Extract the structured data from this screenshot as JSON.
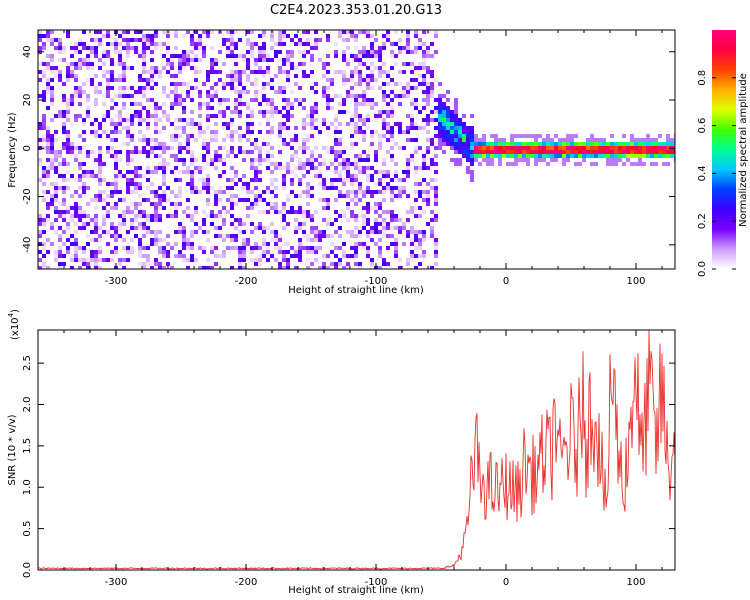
{
  "title": "C2E4.2023.353.01.20.G13",
  "chart_data": [
    {
      "type": "heatmap",
      "xlabel": "Height of straight line (km)",
      "ylabel": "Frequency (Hz)",
      "xlim": [
        -360,
        130
      ],
      "ylim": [
        -50,
        49
      ],
      "x_ticks": [
        -300,
        -200,
        -100,
        0,
        100
      ],
      "x_tick_labels": [
        "-300",
        "-200",
        "-100",
        "0",
        "100"
      ],
      "y_ticks": [
        -40,
        -20,
        0,
        20,
        40
      ],
      "y_tick_labels": [
        "-40",
        "-20",
        "0",
        "20",
        "40"
      ],
      "grid": false,
      "colorbar": {
        "label": "Normalized spectral amplitude",
        "range": [
          0,
          1
        ],
        "ticks": [
          0.0,
          0.2,
          0.4,
          0.6,
          0.8
        ],
        "tick_labels": [
          "0.0",
          "0.2",
          "0.4",
          "0.6",
          "0.8"
        ],
        "colormap": [
          "#ffffff",
          "#cc99ff",
          "#7a00ff",
          "#3a00ff",
          "#0040ff",
          "#00c8ff",
          "#00ff90",
          "#40ff00",
          "#e0ff00",
          "#ffb000",
          "#ff4000",
          "#ff0040",
          "#ff0080"
        ]
      },
      "regions": [
        {
          "description": "broadband noise",
          "x_range": [
            -360,
            -55
          ],
          "y_range": [
            -50,
            49
          ],
          "amplitude": [
            0.0,
            0.25
          ]
        },
        {
          "description": "transition",
          "x_range": [
            -55,
            -25
          ],
          "y_center_start": 15,
          "y_center_end": 0,
          "amplitude": [
            0.2,
            0.6
          ]
        },
        {
          "description": "carrier line",
          "x_range": [
            -25,
            130
          ],
          "y_center": 0,
          "amplitude": [
            0.8,
            1.0
          ]
        }
      ]
    },
    {
      "type": "line",
      "xlabel": "Height of straight line (km)",
      "ylabel": "SNR (10 * v/v)",
      "y_exponent_label": "(x10",
      "y_exponent_power": "4",
      "y_exponent_close": ")",
      "xlim": [
        -360,
        130
      ],
      "ylim": [
        0,
        2.9
      ],
      "x_ticks": [
        -300,
        -200,
        -100,
        0,
        100
      ],
      "x_tick_labels": [
        "-300",
        "-200",
        "-100",
        "0",
        "100"
      ],
      "y_ticks": [
        0.0,
        0.5,
        1.0,
        1.5,
        2.0,
        2.5
      ],
      "y_tick_labels": [
        "0.0",
        "0.5",
        "1.0",
        "1.5",
        "2.0",
        "2.5"
      ],
      "grid": false,
      "line_color": "#e8302a",
      "series": [
        {
          "x": [
            -360,
            -300,
            -200,
            -100,
            -50,
            -40,
            -35,
            -30,
            -28,
            -25,
            -22,
            -20,
            -18,
            -15,
            -12,
            -10,
            -5,
            0,
            5,
            10,
            15,
            20,
            25,
            30,
            35,
            38,
            40,
            45,
            50,
            55,
            58,
            60,
            62,
            65,
            70,
            75,
            78,
            80,
            85,
            90,
            95,
            100,
            102,
            105,
            110,
            115,
            120,
            125,
            130
          ],
          "y": [
            0.02,
            0.02,
            0.02,
            0.02,
            0.02,
            0.05,
            0.2,
            0.5,
            0.9,
            1.3,
            1.6,
            0.9,
            1.2,
            1.0,
            1.1,
            1.0,
            1.0,
            1.1,
            1.0,
            1.0,
            1.4,
            1.2,
            1.3,
            1.5,
            1.4,
            2.2,
            1.3,
            1.5,
            1.7,
            1.5,
            2.1,
            2.85,
            1.2,
            2.2,
            1.9,
            1.1,
            0.6,
            2.6,
            1.8,
            1.0,
            1.7,
            2.85,
            1.8,
            1.4,
            2.5,
            1.5,
            2.3,
            1.2,
            1.7
          ]
        }
      ]
    }
  ]
}
